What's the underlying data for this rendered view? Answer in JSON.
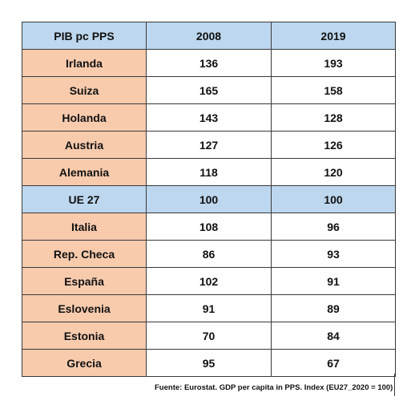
{
  "table": {
    "header": [
      "PIB pc PPS",
      "2008",
      "2019"
    ],
    "rows": [
      {
        "label": "Irlanda",
        "v2008": "136",
        "v2019": "193",
        "highlight": false
      },
      {
        "label": "Suiza",
        "v2008": "165",
        "v2019": "158",
        "highlight": false
      },
      {
        "label": "Holanda",
        "v2008": "143",
        "v2019": "128",
        "highlight": false
      },
      {
        "label": "Austria",
        "v2008": "127",
        "v2019": "126",
        "highlight": false
      },
      {
        "label": "Alemania",
        "v2008": "118",
        "v2019": "120",
        "highlight": false
      },
      {
        "label": "UE 27",
        "v2008": "100",
        "v2019": "100",
        "highlight": true
      },
      {
        "label": "Italia",
        "v2008": "108",
        "v2019": "96",
        "highlight": false
      },
      {
        "label": "Rep. Checa",
        "v2008": "86",
        "v2019": "93",
        "highlight": false
      },
      {
        "label": "España",
        "v2008": "102",
        "v2019": "91",
        "highlight": false
      },
      {
        "label": "Eslovenia",
        "v2008": "91",
        "v2019": "89",
        "highlight": false
      },
      {
        "label": "Estonia",
        "v2008": "70",
        "v2019": "84",
        "highlight": false
      },
      {
        "label": "Grecia",
        "v2008": "95",
        "v2019": "67",
        "highlight": false
      }
    ]
  },
  "source": "Fuente: Eurostat. GDP per capita in PPS. Index (EU27_2020 = 100)",
  "colors": {
    "header_fill": "#bdd7ee",
    "label_fill": "#f8cbad",
    "border": "#3a3a3a"
  }
}
